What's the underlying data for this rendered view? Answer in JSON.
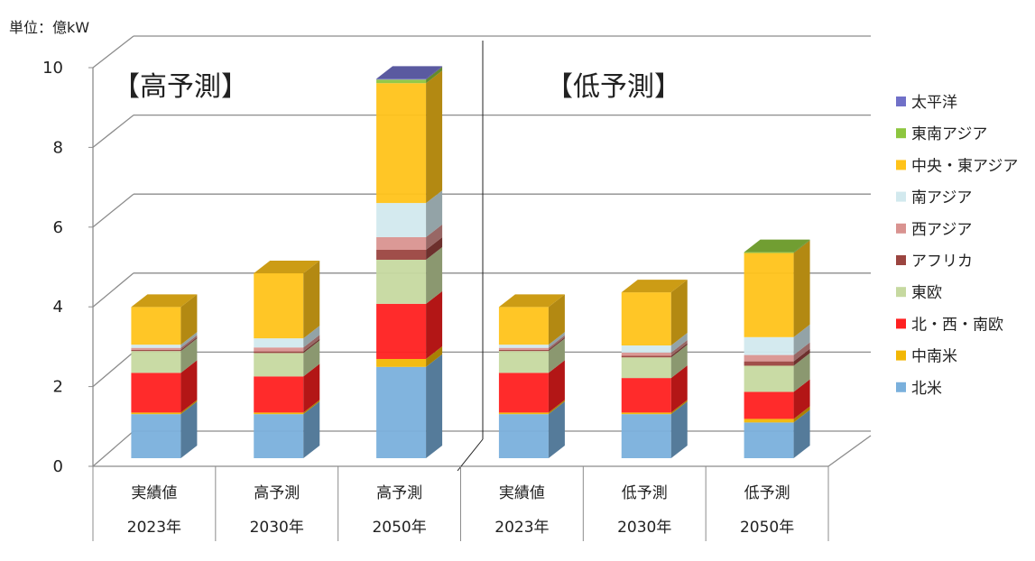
{
  "chart_data": {
    "type": "bar",
    "stacked": true,
    "style": "3d",
    "unit_label": "単位：億kW",
    "ylim": [
      0,
      10
    ],
    "yticks": [
      0,
      2,
      4,
      6,
      8,
      10
    ],
    "grid": true,
    "legend_position": "right",
    "section_labels": [
      "【高予測】",
      "【低予測】"
    ],
    "categories": [
      [
        "実績値",
        "2023年"
      ],
      [
        "高予測",
        "2030年"
      ],
      [
        "高予測",
        "2050年"
      ],
      [
        "実績値",
        "2023年"
      ],
      [
        "低予測",
        "2030年"
      ],
      [
        "低予測",
        "2050年"
      ]
    ],
    "series": [
      {
        "name": "北米",
        "color": "#7ab0dc",
        "values": [
          1.11,
          1.11,
          2.3,
          1.11,
          1.11,
          0.9
        ]
      },
      {
        "name": "中南米",
        "color": "#f2b705",
        "values": [
          0.04,
          0.04,
          0.2,
          0.04,
          0.04,
          0.09
        ]
      },
      {
        "name": "北・西・南欧",
        "color": "#ff2020",
        "values": [
          1.0,
          0.91,
          1.39,
          1.0,
          0.87,
          0.68
        ]
      },
      {
        "name": "東欧",
        "color": "#c6d9a0",
        "values": [
          0.55,
          0.59,
          1.11,
          0.55,
          0.52,
          0.66
        ]
      },
      {
        "name": "アフリカ",
        "color": "#9b4540",
        "values": [
          0.03,
          0.04,
          0.25,
          0.03,
          0.04,
          0.11
        ]
      },
      {
        "name": "西アジア",
        "color": "#d99390",
        "values": [
          0.05,
          0.1,
          0.32,
          0.05,
          0.08,
          0.16
        ]
      },
      {
        "name": "南アジア",
        "color": "#d2e9ee",
        "values": [
          0.08,
          0.23,
          0.86,
          0.08,
          0.18,
          0.45
        ]
      },
      {
        "name": "中央・東アジア",
        "color": "#ffc31a",
        "values": [
          0.95,
          1.64,
          3.02,
          0.95,
          1.34,
          2.12
        ]
      },
      {
        "name": "東南アジア",
        "color": "#8dc63f",
        "values": [
          0.0,
          0.0,
          0.09,
          0.0,
          0.0,
          0.02
        ]
      },
      {
        "name": "太平洋",
        "color": "#7070c8",
        "values": [
          0.0,
          0.0,
          0.02,
          0.0,
          0.0,
          0.0
        ]
      }
    ]
  }
}
